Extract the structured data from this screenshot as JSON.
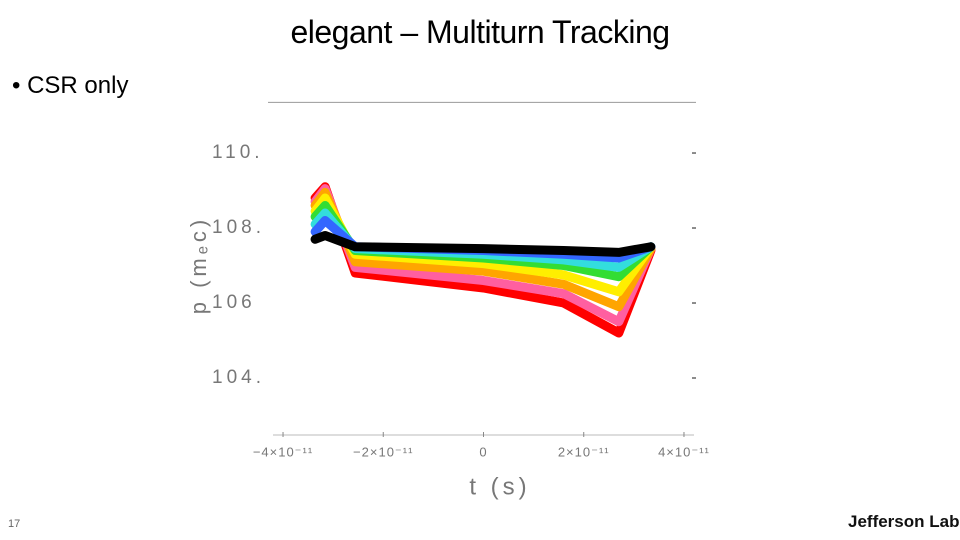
{
  "slide": {
    "title": "elegant – Multiturn Tracking",
    "bullet": "CSR only",
    "page_number": "17",
    "logo": "Jefferson Lab"
  },
  "chart_data": {
    "type": "line",
    "xlabel": "t (s)",
    "ylabel": "p (mₑc)",
    "x": [
      -3.36e-11,
      -3.16e-11,
      -2.56e-11,
      0,
      1.6e-11,
      2.7e-11,
      3.34e-11
    ],
    "series": [
      {
        "color": "#ff0000",
        "values": [
          108.8,
          109.1,
          106.8,
          106.4,
          106.0,
          105.2,
          107.4
        ]
      },
      {
        "color": "#ff5fa0",
        "values": [
          108.7,
          109.05,
          106.95,
          106.6,
          106.25,
          105.5,
          107.45
        ]
      },
      {
        "color": "#ffa500",
        "values": [
          108.6,
          108.95,
          107.1,
          106.85,
          106.5,
          105.9,
          107.45
        ]
      },
      {
        "color": "#ffee00",
        "values": [
          108.45,
          108.8,
          107.3,
          107.05,
          106.75,
          106.3,
          107.5
        ]
      },
      {
        "color": "#33dd33",
        "values": [
          108.3,
          108.6,
          107.4,
          107.2,
          107.0,
          106.7,
          107.5
        ]
      },
      {
        "color": "#33dddd",
        "values": [
          108.1,
          108.4,
          107.45,
          107.3,
          107.15,
          106.95,
          107.5
        ]
      },
      {
        "color": "#3366ff",
        "values": [
          107.9,
          108.2,
          107.5,
          107.4,
          107.3,
          107.2,
          107.5
        ]
      },
      {
        "color": "#000000",
        "values": [
          107.7,
          107.8,
          107.5,
          107.45,
          107.4,
          107.35,
          107.5
        ]
      }
    ],
    "xlim": [
      -4.2e-11,
      4.2e-11
    ],
    "xticks": [
      {
        "value": -4e-11,
        "label": "−4×10⁻¹¹"
      },
      {
        "value": -2e-11,
        "label": "−2×10⁻¹¹"
      },
      0,
      {
        "value": 2e-11,
        "label": "2×10⁻¹¹"
      },
      {
        "value": 4e-11,
        "label": "4×10⁻¹¹"
      }
    ],
    "ylim": [
      102.4,
      111.35
    ],
    "yticks": [
      {
        "value": 110,
        "label": "110."
      },
      {
        "value": 108,
        "label": "108."
      },
      {
        "value": 106,
        "label": "106"
      },
      {
        "value": 104,
        "label": "104."
      }
    ],
    "grid": false
  }
}
